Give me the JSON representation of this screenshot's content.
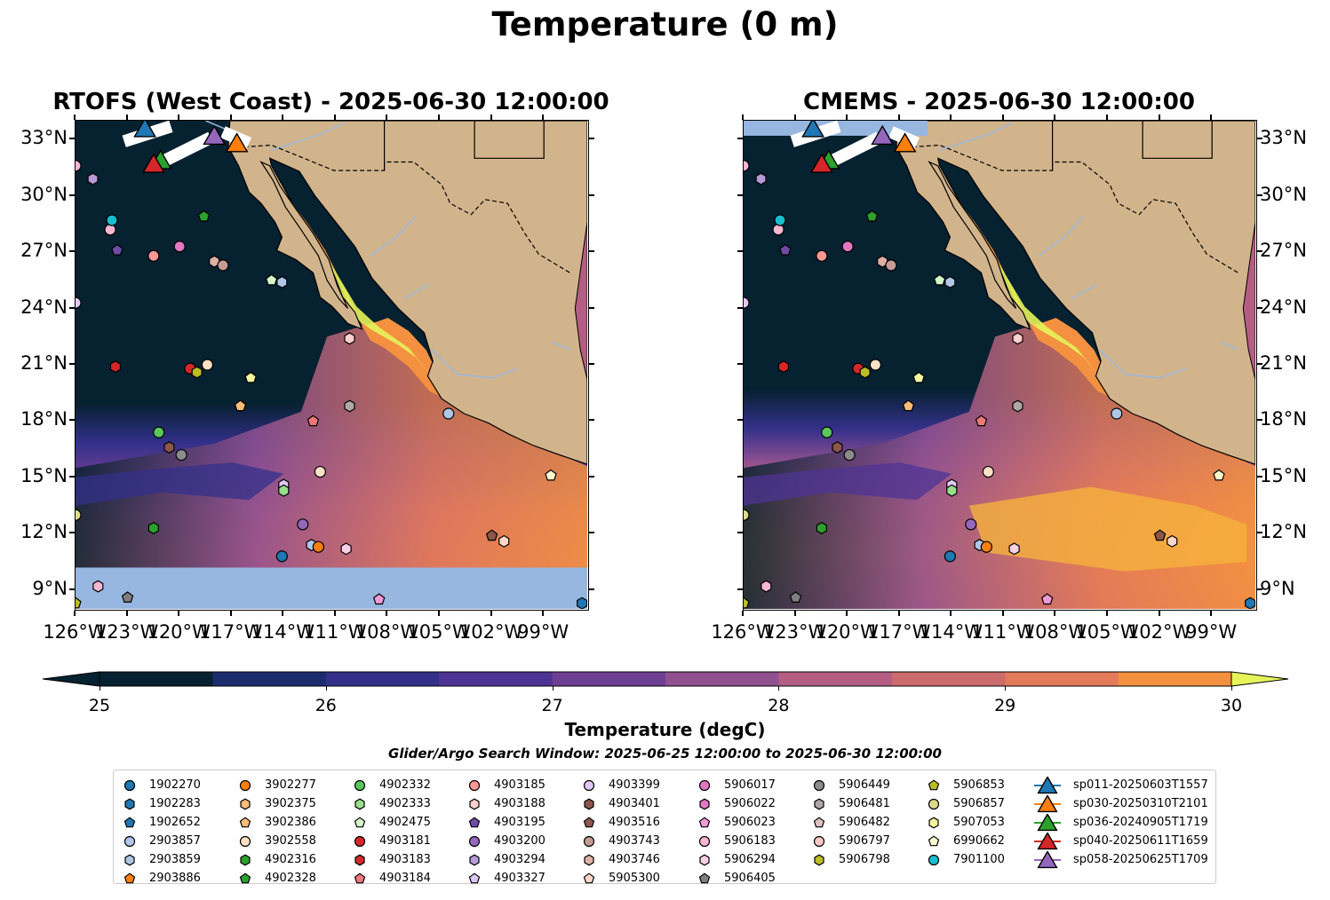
{
  "figure_title": "Temperature (0 m)",
  "panels": [
    {
      "title": "RTOFS (West Coast) - 2025-06-30 12:00:00",
      "model": "rtofs"
    },
    {
      "title": "CMEMS - 2025-06-30 12:00:00",
      "model": "cmems"
    }
  ],
  "axes": {
    "lon_ticks": [
      "126°W",
      "123°W",
      "120°W",
      "117°W",
      "114°W",
      "111°W",
      "108°W",
      "105°W",
      "102°W",
      "99°W"
    ],
    "lat_ticks": [
      "33°N",
      "30°N",
      "27°N",
      "24°N",
      "21°N",
      "18°N",
      "15°N",
      "12°N",
      "9°N"
    ]
  },
  "colorbar": {
    "label": "Temperature (degC)",
    "ticks": [
      "25",
      "26",
      "27",
      "28",
      "29",
      "30"
    ],
    "colors": [
      "#062130",
      "#1c2c6e",
      "#33308a",
      "#4d3494",
      "#6f3f93",
      "#905190",
      "#b35e82",
      "#cb6b6c",
      "#e37a59",
      "#f39140",
      "#f6b13d",
      "#e6f45a"
    ],
    "min": 25,
    "max": 30,
    "extend": "both"
  },
  "search_window": "Glider/Argo Search Window: 2025-06-25 12:00:00 to 2025-06-30 12:00:00",
  "legend": [
    [
      {
        "label": "1902270",
        "marker": "circle",
        "color": "#1f77b4"
      },
      {
        "label": "1902283",
        "marker": "hexagon",
        "color": "#1f77b4"
      },
      {
        "label": "1902652",
        "marker": "pentagon",
        "color": "#1f77b4"
      },
      {
        "label": "2903857",
        "marker": "circle",
        "color": "#aec7e8"
      },
      {
        "label": "2903859",
        "marker": "hexagon",
        "color": "#aec7e8"
      },
      {
        "label": "2903886",
        "marker": "pentagon",
        "color": "#ff7f0e"
      }
    ],
    [
      {
        "label": "3902277",
        "marker": "circle",
        "color": "#ff7f0e"
      },
      {
        "label": "3902375",
        "marker": "hexagon",
        "color": "#ffbb78"
      },
      {
        "label": "3902386",
        "marker": "pentagon",
        "color": "#ffbb78"
      },
      {
        "label": "3902558",
        "marker": "circle",
        "color": "#fde0c5"
      },
      {
        "label": "4902316",
        "marker": "hexagon",
        "color": "#2ca02c"
      },
      {
        "label": "4902328",
        "marker": "pentagon",
        "color": "#2ca02c"
      }
    ],
    [
      {
        "label": "4902332",
        "marker": "circle",
        "color": "#5ac75a"
      },
      {
        "label": "4902333",
        "marker": "hexagon",
        "color": "#98df8a"
      },
      {
        "label": "4902475",
        "marker": "pentagon",
        "color": "#d4f5c8"
      },
      {
        "label": "4903181",
        "marker": "circle",
        "color": "#d62728"
      },
      {
        "label": "4903183",
        "marker": "hexagon",
        "color": "#d62728"
      },
      {
        "label": "4903184",
        "marker": "pentagon",
        "color": "#f07878"
      }
    ],
    [
      {
        "label": "4903185",
        "marker": "circle",
        "color": "#ff9896"
      },
      {
        "label": "4903188",
        "marker": "hexagon",
        "color": "#ffd0cc"
      },
      {
        "label": "4903195",
        "marker": "pentagon",
        "color": "#6f4ba8"
      },
      {
        "label": "4903200",
        "marker": "circle",
        "color": "#9467bd"
      },
      {
        "label": "4903294",
        "marker": "hexagon",
        "color": "#b69ad6"
      },
      {
        "label": "4903327",
        "marker": "pentagon",
        "color": "#d8c8f0"
      }
    ],
    [
      {
        "label": "4903399",
        "marker": "circle",
        "color": "#e0c8f5"
      },
      {
        "label": "4903401",
        "marker": "hexagon",
        "color": "#8c564b"
      },
      {
        "label": "4903516",
        "marker": "pentagon",
        "color": "#8c564b"
      },
      {
        "label": "4903743",
        "marker": "circle",
        "color": "#c49c94"
      },
      {
        "label": "4903746",
        "marker": "hexagon",
        "color": "#e0b0a5"
      },
      {
        "label": "5905300",
        "marker": "pentagon",
        "color": "#fcd8c8"
      }
    ],
    [
      {
        "label": "5906017",
        "marker": "circle",
        "color": "#e377c2"
      },
      {
        "label": "5906022",
        "marker": "hexagon",
        "color": "#e377c2"
      },
      {
        "label": "5906023",
        "marker": "pentagon",
        "color": "#f09ad8"
      },
      {
        "label": "5906183",
        "marker": "circle",
        "color": "#f7b6d2"
      },
      {
        "label": "5906294",
        "marker": "hexagon",
        "color": "#fbd0e6"
      },
      {
        "label": "5906405",
        "marker": "pentagon",
        "color": "#7f7f7f"
      }
    ],
    [
      {
        "label": "5906449",
        "marker": "circle",
        "color": "#8c8c8c"
      },
      {
        "label": "5906481",
        "marker": "hexagon",
        "color": "#b0a8a8"
      },
      {
        "label": "5906482",
        "marker": "pentagon",
        "color": "#e0c0c0"
      },
      {
        "label": "5906797",
        "marker": "circle",
        "color": "#f8c8c8"
      },
      {
        "label": "5906798",
        "marker": "hexagon",
        "color": "#bcbd22"
      }
    ],
    [
      {
        "label": "5906853",
        "marker": "pentagon",
        "color": "#bcbd22"
      },
      {
        "label": "5906857",
        "marker": "circle",
        "color": "#dbdb8d"
      },
      {
        "label": "5907053",
        "marker": "hexagon",
        "color": "#f5f5a0"
      },
      {
        "label": "6990662",
        "marker": "pentagon",
        "color": "#fafad0"
      },
      {
        "label": "7901100",
        "marker": "circle",
        "color": "#17becf"
      }
    ],
    [
      {
        "label": "sp011-20250603T1557",
        "marker": "triangle",
        "color": "#1f77b4"
      },
      {
        "label": "sp030-20250310T2101",
        "marker": "triangle",
        "color": "#ff7f0e"
      },
      {
        "label": "sp036-20240905T1719",
        "marker": "triangle",
        "color": "#2ca02c"
      },
      {
        "label": "sp040-20250611T1659",
        "marker": "triangle",
        "color": "#d62728"
      },
      {
        "label": "sp058-20250625T1709",
        "marker": "triangle",
        "color": "#9467bd"
      }
    ]
  ],
  "map_markers": [
    {
      "lon": -126.0,
      "lat": 31.6,
      "marker": "circle",
      "color": "#f7b6d2"
    },
    {
      "lon": -125.0,
      "lat": 30.9,
      "marker": "hexagon",
      "color": "#b69ad6"
    },
    {
      "lon": -124.0,
      "lat": 28.2,
      "marker": "circle",
      "color": "#f7b6d2"
    },
    {
      "lon": -123.9,
      "lat": 28.7,
      "marker": "circle",
      "color": "#17becf"
    },
    {
      "lon": -123.6,
      "lat": 27.1,
      "marker": "pentagon",
      "color": "#6f4ba8"
    },
    {
      "lon": -121.5,
      "lat": 26.8,
      "marker": "circle",
      "color": "#ff9896"
    },
    {
      "lon": -120.0,
      "lat": 27.3,
      "marker": "circle",
      "color": "#e377c2"
    },
    {
      "lon": -118.6,
      "lat": 28.9,
      "marker": "pentagon",
      "color": "#2ca02c"
    },
    {
      "lon": -118.0,
      "lat": 26.5,
      "marker": "hexagon",
      "color": "#e0b0a5"
    },
    {
      "lon": -117.5,
      "lat": 26.3,
      "marker": "circle",
      "color": "#c49c94"
    },
    {
      "lon": -114.7,
      "lat": 25.5,
      "marker": "pentagon",
      "color": "#d4f5c8"
    },
    {
      "lon": -114.1,
      "lat": 25.4,
      "marker": "hexagon",
      "color": "#aec7e8"
    },
    {
      "lon": -126.0,
      "lat": 24.3,
      "marker": "circle",
      "color": "#e0c8f5"
    },
    {
      "lon": -110.2,
      "lat": 22.4,
      "marker": "hexagon",
      "color": "#ffd0cc"
    },
    {
      "lon": -123.7,
      "lat": 20.9,
      "marker": "hexagon",
      "color": "#d62728"
    },
    {
      "lon": -119.4,
      "lat": 20.8,
      "marker": "circle",
      "color": "#d62728"
    },
    {
      "lon": -119.0,
      "lat": 20.6,
      "marker": "hexagon",
      "color": "#bcbd22"
    },
    {
      "lon": -118.4,
      "lat": 21.0,
      "marker": "circle",
      "color": "#fde0c5"
    },
    {
      "lon": -115.9,
      "lat": 20.3,
      "marker": "pentagon",
      "color": "#f5f5a0"
    },
    {
      "lon": -116.5,
      "lat": 18.8,
      "marker": "pentagon",
      "color": "#ffbb78"
    },
    {
      "lon": -112.3,
      "lat": 18.0,
      "marker": "pentagon",
      "color": "#f07878"
    },
    {
      "lon": -110.2,
      "lat": 18.8,
      "marker": "hexagon",
      "color": "#b0a8a8"
    },
    {
      "lon": -104.5,
      "lat": 18.4,
      "marker": "circle",
      "color": "#aec7e8"
    },
    {
      "lon": -121.2,
      "lat": 17.4,
      "marker": "circle",
      "color": "#5ac75a"
    },
    {
      "lon": -120.6,
      "lat": 16.6,
      "marker": "hexagon",
      "color": "#8c564b"
    },
    {
      "lon": -119.9,
      "lat": 16.2,
      "marker": "circle",
      "color": "#8c8c8c"
    },
    {
      "lon": -114.0,
      "lat": 14.6,
      "marker": "hexagon",
      "color": "#e0c8f5"
    },
    {
      "lon": -114.0,
      "lat": 14.3,
      "marker": "hexagon",
      "color": "#98df8a"
    },
    {
      "lon": -111.9,
      "lat": 15.3,
      "marker": "circle",
      "color": "#fde0c5"
    },
    {
      "lon": -98.6,
      "lat": 15.1,
      "marker": "pentagon",
      "color": "#fafad0"
    },
    {
      "lon": -126.0,
      "lat": 13.0,
      "marker": "circle",
      "color": "#dbdb8d"
    },
    {
      "lon": -121.5,
      "lat": 12.3,
      "marker": "hexagon",
      "color": "#2ca02c"
    },
    {
      "lon": -112.9,
      "lat": 12.5,
      "marker": "circle",
      "color": "#9467bd"
    },
    {
      "lon": -112.4,
      "lat": 11.4,
      "marker": "hexagon",
      "color": "#aec7e8"
    },
    {
      "lon": -112.0,
      "lat": 11.3,
      "marker": "circle",
      "color": "#ff7f0e"
    },
    {
      "lon": -110.4,
      "lat": 11.2,
      "marker": "hexagon",
      "color": "#fbd0e6"
    },
    {
      "lon": -114.1,
      "lat": 10.8,
      "marker": "circle",
      "color": "#1f77b4"
    },
    {
      "lon": -102.0,
      "lat": 11.9,
      "marker": "pentagon",
      "color": "#8c564b"
    },
    {
      "lon": -101.3,
      "lat": 11.6,
      "marker": "hexagon",
      "color": "#fcd8c8"
    },
    {
      "lon": -124.7,
      "lat": 9.2,
      "marker": "hexagon",
      "color": "#f7b6d2"
    },
    {
      "lon": -123.0,
      "lat": 8.6,
      "marker": "pentagon",
      "color": "#7f7f7f"
    },
    {
      "lon": -108.5,
      "lat": 8.5,
      "marker": "pentagon",
      "color": "#f09ad8"
    },
    {
      "lon": -126.0,
      "lat": 8.3,
      "marker": "pentagon",
      "color": "#bcbd22"
    },
    {
      "lon": -96.8,
      "lat": 8.3,
      "marker": "hexagon",
      "color": "#1f77b4"
    }
  ],
  "glider_markers": [
    {
      "lon": -122.0,
      "lat": 33.6,
      "marker": "triangle",
      "color": "#1f77b4"
    },
    {
      "lon": -116.7,
      "lat": 32.8,
      "marker": "triangle",
      "color": "#ff7f0e"
    },
    {
      "lon": -121.1,
      "lat": 31.9,
      "marker": "triangle",
      "color": "#2ca02c"
    },
    {
      "lon": -121.5,
      "lat": 31.7,
      "marker": "triangle",
      "color": "#d62728"
    },
    {
      "lon": -118.0,
      "lat": 33.2,
      "marker": "triangle",
      "color": "#9467bd"
    }
  ]
}
